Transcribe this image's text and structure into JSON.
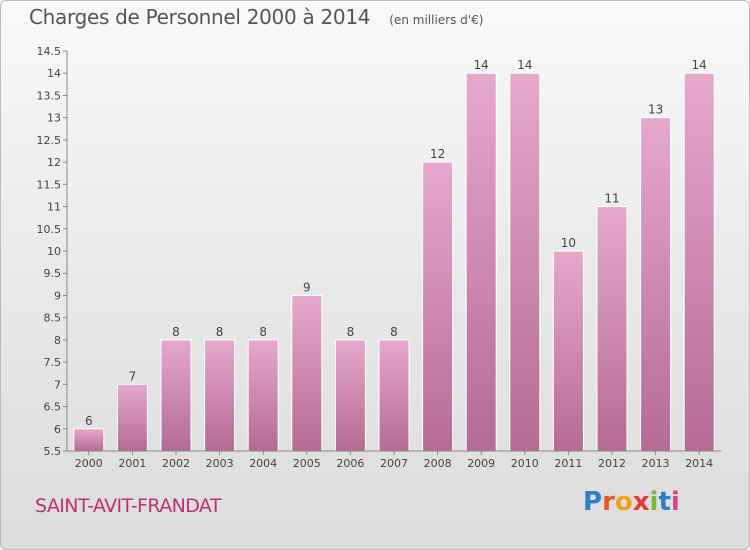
{
  "title": "Charges de Personnel 2000 à 2014",
  "subtitle": "(en milliers d'€)",
  "commune": "SAINT-AVIT-FRANDAT",
  "logo_text": "Proxiti",
  "colors": {
    "bar_top": "#e6a8cd",
    "bar_bottom": "#b46b94",
    "title": "#555555",
    "commune": "#c0306f"
  },
  "chart_data": {
    "type": "bar",
    "title": "Charges de Personnel 2000 à 2014",
    "subtitle": "(en milliers d'€)",
    "categories": [
      "2000",
      "2001",
      "2002",
      "2003",
      "2004",
      "2005",
      "2006",
      "2007",
      "2008",
      "2009",
      "2010",
      "2011",
      "2012",
      "2013",
      "2014"
    ],
    "values": [
      6,
      7,
      8,
      8,
      8,
      9,
      8,
      8,
      12,
      14,
      14,
      10,
      11,
      13,
      14
    ],
    "ylim": [
      5.5,
      14.5
    ],
    "yticks": [
      "5.5",
      "6",
      "6.5",
      "7",
      "7.5",
      "8",
      "8.5",
      "9",
      "9.5",
      "10",
      "10.5",
      "11",
      "11.5",
      "12",
      "12.5",
      "13",
      "13.5",
      "14",
      "14.5"
    ],
    "grid": false,
    "legend": "none",
    "data_labels": true
  }
}
